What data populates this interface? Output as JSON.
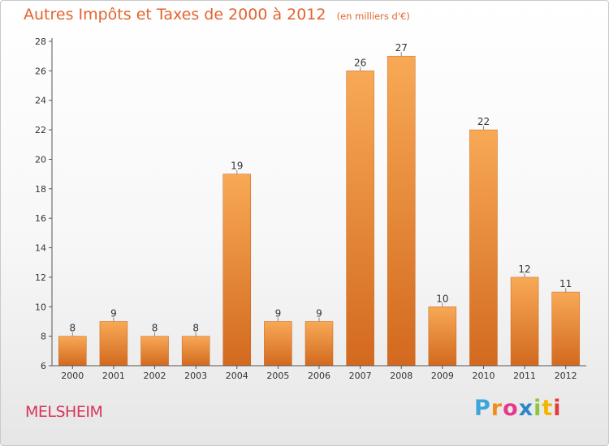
{
  "header": {
    "title": "Autres Impôts et Taxes de 2000 à 2012",
    "unit": "(en milliers d'€)"
  },
  "footer": {
    "commune": "MELSHEIM"
  },
  "logo": {
    "letters": [
      "P",
      "r",
      "o",
      "x",
      "i",
      "t",
      "i"
    ],
    "colors": [
      "#3aa6dc",
      "#f28c1c",
      "#e53a8c",
      "#2d86c8",
      "#8cc63f",
      "#f4b400",
      "#e53a3a"
    ]
  },
  "colors": {
    "bar_light": "#f8a956",
    "bar_dark": "#d2691f",
    "axis": "#555555",
    "grid": "#d6d6d6",
    "text": "#333333",
    "title": "#e2642f",
    "commune": "#d8345a"
  },
  "chart_data": {
    "type": "bar",
    "title": "Autres Impôts et Taxes de 2000 à 2012",
    "subtitle": "(en milliers d'€)",
    "categories": [
      "2000",
      "2001",
      "2002",
      "2003",
      "2004",
      "2005",
      "2006",
      "2007",
      "2008",
      "2009",
      "2010",
      "2011",
      "2012"
    ],
    "values": [
      8,
      9,
      8,
      8,
      19,
      9,
      9,
      26,
      27,
      10,
      22,
      12,
      11
    ],
    "ylim": [
      6,
      28
    ],
    "yticks": [
      6,
      8,
      10,
      12,
      14,
      16,
      18,
      20,
      22,
      24,
      26,
      28
    ],
    "grid": false,
    "data_labels": true
  }
}
